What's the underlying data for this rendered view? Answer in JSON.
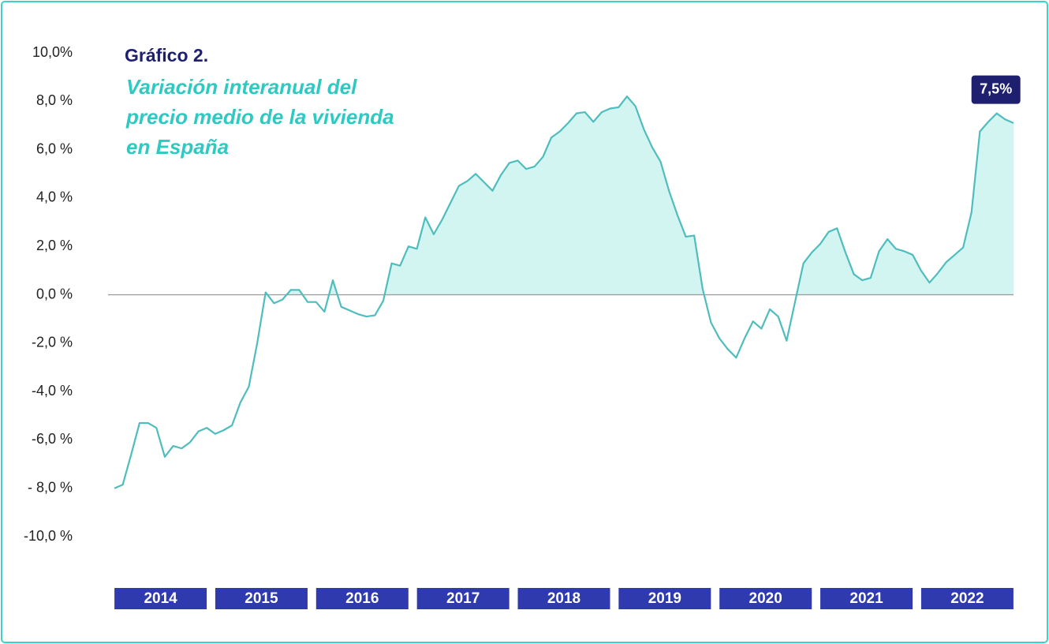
{
  "chart_data": {
    "type": "area",
    "title": "Gráfico 2.",
    "subtitle": [
      "Variación interanual del",
      "precio medio de la vivienda",
      "en España"
    ],
    "categories": [
      null,
      null,
      null,
      null,
      null,
      "2014",
      null,
      null,
      null,
      null,
      null,
      null,
      null,
      null,
      null,
      null,
      null,
      "2015",
      null,
      null,
      null,
      null,
      null,
      null,
      null,
      null,
      null,
      null,
      null,
      "2016",
      null,
      null,
      null,
      null,
      null,
      null,
      null,
      null,
      null,
      null,
      null,
      "2017",
      null,
      null,
      null,
      null,
      null,
      null,
      null,
      null,
      null,
      null,
      null,
      "2018",
      null,
      null,
      null,
      null,
      null,
      null,
      null,
      null,
      null,
      null,
      null,
      "2019",
      null,
      null,
      null,
      null,
      null,
      null,
      null,
      null,
      null,
      null,
      null,
      "2020",
      null,
      null,
      null,
      null,
      null,
      null,
      null,
      null,
      null,
      null,
      null,
      "2021",
      null,
      null,
      null,
      null,
      null,
      null,
      null,
      null,
      null,
      null,
      null,
      "2022",
      null,
      null,
      null,
      null,
      null,
      null
    ],
    "values": [
      -8.0,
      -7.85,
      -6.6,
      -5.3,
      -5.3,
      -5.5,
      -6.7,
      -6.25,
      -6.35,
      -6.1,
      -5.65,
      -5.5,
      -5.75,
      -5.6,
      -5.4,
      -4.45,
      -3.8,
      -2.0,
      0.1,
      -0.35,
      -0.2,
      0.2,
      0.2,
      -0.3,
      -0.3,
      -0.7,
      0.6,
      -0.5,
      -0.65,
      -0.8,
      -0.9,
      -0.85,
      -0.25,
      1.3,
      1.2,
      2.0,
      1.9,
      3.2,
      2.5,
      3.1,
      3.8,
      4.5,
      4.7,
      5.0,
      4.65,
      4.3,
      4.95,
      5.45,
      5.55,
      5.2,
      5.3,
      5.7,
      6.5,
      6.75,
      7.1,
      7.5,
      7.55,
      7.15,
      7.55,
      7.7,
      7.75,
      8.2,
      7.8,
      6.85,
      6.1,
      5.5,
      4.3,
      3.3,
      2.4,
      2.45,
      0.25,
      -1.15,
      -1.8,
      -2.25,
      -2.6,
      -1.8,
      -1.1,
      -1.4,
      -0.6,
      -0.9,
      -1.9,
      -0.3,
      1.3,
      1.75,
      2.1,
      2.6,
      2.75,
      1.75,
      0.85,
      0.6,
      0.7,
      1.8,
      2.3,
      1.9,
      1.8,
      1.65,
      1.0,
      0.5,
      0.9,
      1.35,
      1.65,
      1.95,
      3.4,
      6.75,
      7.15,
      7.5,
      7.25,
      7.1
    ],
    "value_labels": [
      null,
      null,
      null,
      null,
      null,
      null,
      null,
      null,
      null,
      null,
      null,
      null,
      null,
      null,
      null,
      null,
      null,
      null,
      null,
      null,
      null,
      null,
      null,
      null,
      null,
      null,
      null,
      null,
      null,
      null,
      null,
      null,
      null,
      null,
      null,
      null,
      null,
      null,
      null,
      null,
      null,
      null,
      null,
      null,
      null,
      null,
      null,
      null,
      null,
      null,
      null,
      null,
      null,
      null,
      null,
      null,
      null,
      null,
      null,
      null,
      null,
      null,
      null,
      null,
      null,
      null,
      null,
      null,
      null,
      null,
      null,
      null,
      null,
      null,
      null,
      null,
      null,
      null,
      null,
      null,
      null,
      null,
      null,
      null,
      null,
      null,
      null,
      null,
      null,
      null,
      null,
      null,
      null,
      null,
      null,
      null,
      null,
      null,
      null,
      null,
      null,
      null,
      null,
      null,
      null,
      "7,5%",
      null,
      null
    ],
    "color": "#4fbdbd",
    "fill": "#d2f5f2",
    "ylim": [
      -10,
      10
    ],
    "yticks": [
      {
        "value": 10,
        "label": "10,0%"
      },
      {
        "value": 8,
        "label": "8,0 %"
      },
      {
        "value": 6,
        "label": "6,0 %"
      },
      {
        "value": 4,
        "label": "4,0 %"
      },
      {
        "value": 2,
        "label": "2,0 %"
      },
      {
        "value": 0,
        "label": "0,0 %"
      },
      {
        "value": -2,
        "label": "-2,0 %"
      },
      {
        "value": -4,
        "label": "-4,0 %"
      },
      {
        "value": -6,
        "label": "-6,0 %"
      },
      {
        "value": -8,
        "label": "- 8,0 %"
      },
      {
        "value": -10,
        "label": "-10,0 %"
      }
    ],
    "grid": false
  }
}
